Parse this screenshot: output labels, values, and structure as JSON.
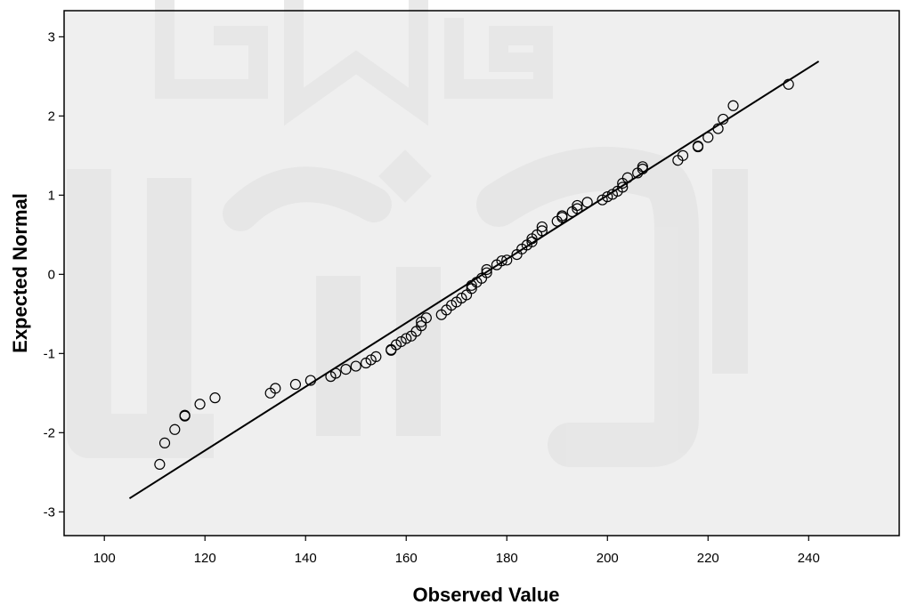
{
  "chart_data": {
    "type": "scatter",
    "title": "",
    "xlabel": "Observed Value",
    "ylabel": "Expected Normal",
    "xlim": [
      92,
      258
    ],
    "ylim": [
      -3.3,
      3.33
    ],
    "xticks": [
      100,
      120,
      140,
      160,
      180,
      200,
      220,
      240
    ],
    "yticks": [
      -3,
      -2,
      -1,
      0,
      1,
      2,
      3
    ],
    "grid": false,
    "legend": "none",
    "colors": {
      "plot_background": "#efefef",
      "marker": "#000000",
      "line": "#000000",
      "watermark": "#e6e6e6"
    },
    "reference_line": {
      "x": [
        105,
        242
      ],
      "y": [
        -2.83,
        2.69
      ]
    },
    "series": [
      {
        "points": [
          [
            111,
            -2.4
          ],
          [
            112,
            -2.13
          ],
          [
            114,
            -1.96
          ],
          [
            116,
            -1.79
          ],
          [
            116,
            -1.78
          ],
          [
            119,
            -1.64
          ],
          [
            122,
            -1.56
          ],
          [
            133,
            -1.5
          ],
          [
            134,
            -1.44
          ],
          [
            138,
            -1.39
          ],
          [
            141,
            -1.34
          ],
          [
            145,
            -1.29
          ],
          [
            146,
            -1.25
          ],
          [
            148,
            -1.2
          ],
          [
            150,
            -1.16
          ],
          [
            152,
            -1.12
          ],
          [
            153,
            -1.08
          ],
          [
            154,
            -1.04
          ],
          [
            157,
            -0.96
          ],
          [
            157,
            -0.95
          ],
          [
            158,
            -0.89
          ],
          [
            159,
            -0.85
          ],
          [
            160,
            -0.81
          ],
          [
            161,
            -0.78
          ],
          [
            162,
            -0.72
          ],
          [
            163,
            -0.65
          ],
          [
            163,
            -0.6
          ],
          [
            164,
            -0.55
          ],
          [
            167,
            -0.51
          ],
          [
            168,
            -0.45
          ],
          [
            169,
            -0.39
          ],
          [
            170,
            -0.35
          ],
          [
            171,
            -0.3
          ],
          [
            172,
            -0.26
          ],
          [
            173,
            -0.18
          ],
          [
            173,
            -0.14
          ],
          [
            174,
            -0.1
          ],
          [
            175,
            -0.05
          ],
          [
            176,
            0.02
          ],
          [
            176,
            0.06
          ],
          [
            178,
            0.12
          ],
          [
            179,
            0.17
          ],
          [
            180,
            0.18
          ],
          [
            182,
            0.25
          ],
          [
            183,
            0.32
          ],
          [
            184,
            0.37
          ],
          [
            185,
            0.41
          ],
          [
            185,
            0.45
          ],
          [
            186,
            0.5
          ],
          [
            187,
            0.55
          ],
          [
            187,
            0.6
          ],
          [
            190,
            0.67
          ],
          [
            191,
            0.72
          ],
          [
            191,
            0.74
          ],
          [
            193,
            0.79
          ],
          [
            194,
            0.83
          ],
          [
            194,
            0.87
          ],
          [
            196,
            0.91
          ],
          [
            199,
            0.94
          ],
          [
            200,
            0.98
          ],
          [
            201,
            1.01
          ],
          [
            202,
            1.05
          ],
          [
            203,
            1.1
          ],
          [
            203,
            1.15
          ],
          [
            204,
            1.22
          ],
          [
            206,
            1.28
          ],
          [
            207,
            1.33
          ],
          [
            207,
            1.36
          ],
          [
            214,
            1.44
          ],
          [
            215,
            1.5
          ],
          [
            218,
            1.61
          ],
          [
            218,
            1.62
          ],
          [
            220,
            1.73
          ],
          [
            222,
            1.84
          ],
          [
            223,
            1.96
          ],
          [
            225,
            2.13
          ],
          [
            236,
            2.4
          ]
        ]
      }
    ]
  }
}
